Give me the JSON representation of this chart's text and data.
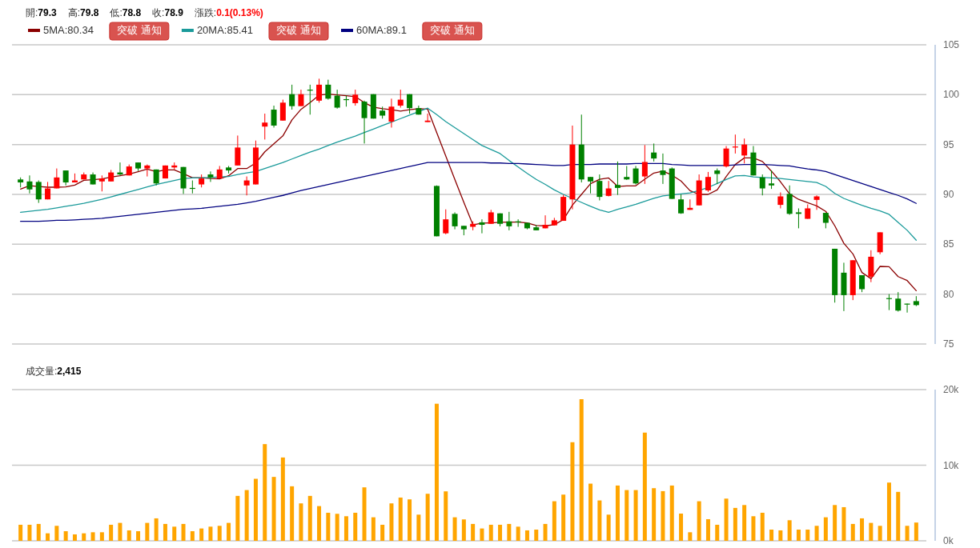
{
  "chart_data": [
    {
      "type": "candlestick",
      "categories": [
        null,
        null,
        null,
        null,
        null,
        null,
        null,
        null,
        null,
        null,
        null,
        null,
        null,
        null,
        null,
        null,
        null,
        null,
        null,
        null,
        null,
        null,
        null,
        null,
        null,
        null,
        null,
        null,
        null,
        null,
        null,
        null,
        null,
        null,
        null,
        null,
        null,
        null,
        null,
        null,
        null,
        null,
        null,
        null,
        null,
        null,
        null,
        null,
        null,
        null,
        null,
        null,
        null,
        null,
        null,
        null,
        null,
        null,
        null,
        null,
        null,
        null,
        null,
        null,
        null,
        null,
        null,
        null,
        null,
        null,
        null,
        null,
        null,
        null,
        null,
        null,
        null,
        null,
        null,
        null,
        null,
        null,
        null,
        null,
        null,
        null,
        null,
        null,
        null,
        null,
        null,
        null,
        null,
        null,
        null,
        null,
        null,
        null,
        null,
        null
      ],
      "ohlc": [
        [
          91.5,
          91.7,
          90.7,
          91.2
        ],
        [
          91.3,
          91.9,
          90.1,
          90.5
        ],
        [
          91.25,
          91.4,
          89.15,
          89.5
        ],
        [
          89.5,
          91.25,
          89.5,
          90.6
        ],
        [
          90.6,
          92.6,
          90.6,
          91.7
        ],
        [
          92.4,
          92.4,
          90.9,
          91.2
        ],
        [
          91.2,
          92.1,
          91.2,
          91.4
        ],
        [
          91.5,
          92.2,
          91.5,
          92.0
        ],
        [
          92.0,
          92.2,
          91.0,
          91.0
        ],
        [
          91.3,
          91.9,
          90.3,
          91.6
        ],
        [
          91.3,
          92.45,
          91.3,
          92.2
        ],
        [
          92.2,
          93.2,
          91.9,
          92.0
        ],
        [
          91.9,
          93.0,
          91.9,
          92.8
        ],
        [
          93.2,
          93.2,
          92.35,
          92.6
        ],
        [
          92.6,
          93.0,
          91.8,
          92.9
        ],
        [
          92.5,
          92.5,
          90.9,
          91.1
        ],
        [
          91.6,
          92.9,
          91.6,
          92.9
        ],
        [
          92.7,
          93.2,
          92.5,
          92.9
        ],
        [
          92.75,
          92.75,
          90.05,
          90.6
        ],
        [
          90.65,
          91.4,
          90.1,
          90.6
        ],
        [
          91.0,
          92.0,
          90.7,
          91.6
        ],
        [
          92.0,
          92.3,
          91.25,
          91.7
        ],
        [
          91.6,
          92.85,
          91.6,
          92.5
        ],
        [
          92.7,
          92.85,
          92.1,
          92.4
        ],
        [
          92.9,
          95.9,
          92.9,
          94.7
        ],
        [
          90.9,
          91.8,
          89.9,
          91.4
        ],
        [
          91.0,
          95.4,
          91.0,
          94.7
        ],
        [
          96.8,
          98.1,
          95.5,
          97.2
        ],
        [
          98.5,
          98.9,
          96.7,
          96.9
        ],
        [
          97.4,
          99.5,
          97.4,
          99.2
        ],
        [
          100.05,
          101.0,
          98.5,
          98.85
        ],
        [
          98.85,
          100.5,
          98.85,
          100.05
        ],
        [
          100.5,
          101.0,
          98.0,
          100.45
        ],
        [
          99.4,
          101.6,
          99.2,
          101.0
        ],
        [
          101.0,
          101.5,
          99.5,
          99.6
        ],
        [
          99.9,
          100.5,
          98.6,
          98.7
        ],
        [
          99.55,
          99.9,
          98.8,
          99.5
        ],
        [
          99.15,
          100.5,
          98.9,
          100.0
        ],
        [
          99.3,
          99.4,
          95.1,
          97.65
        ],
        [
          100.05,
          100.05,
          97.6,
          97.6
        ],
        [
          98.4,
          98.8,
          97.6,
          97.9
        ],
        [
          97.3,
          99.6,
          96.7,
          98.8
        ],
        [
          98.9,
          100.5,
          98.7,
          99.5
        ],
        [
          100.05,
          100.05,
          98.1,
          98.65
        ],
        [
          98.65,
          98.9,
          98.0,
          98.0
        ],
        [
          97.25,
          98.1,
          97.25,
          97.4
        ],
        [
          90.85,
          90.9,
          85.8,
          85.8
        ],
        [
          86.1,
          88.5,
          86.0,
          87.5
        ],
        [
          88.05,
          88.2,
          86.5,
          86.8
        ],
        [
          86.85,
          86.85,
          85.9,
          86.5
        ],
        [
          86.75,
          87.3,
          86.4,
          87.05
        ],
        [
          87.2,
          87.5,
          86.1,
          86.95
        ],
        [
          87.05,
          88.45,
          87.05,
          88.2
        ],
        [
          88.1,
          88.1,
          86.8,
          87.05
        ],
        [
          87.3,
          88.25,
          86.4,
          86.8
        ],
        [
          87.3,
          87.5,
          86.75,
          87.2
        ],
        [
          87.15,
          87.15,
          86.5,
          86.6
        ],
        [
          86.7,
          86.95,
          86.4,
          86.4
        ],
        [
          86.6,
          87.9,
          86.6,
          86.95
        ],
        [
          86.9,
          87.65,
          86.9,
          87.4
        ],
        [
          87.35,
          89.95,
          87.35,
          89.75
        ],
        [
          89.5,
          96.9,
          88.5,
          95.0
        ],
        [
          95.0,
          98.0,
          91.2,
          91.5
        ],
        [
          91.75,
          91.75,
          90.1,
          91.3
        ],
        [
          91.35,
          92.0,
          89.4,
          89.75
        ],
        [
          89.85,
          91.35,
          89.8,
          90.6
        ],
        [
          90.95,
          93.3,
          89.95,
          90.65
        ],
        [
          91.75,
          92.85,
          91.45,
          91.5
        ],
        [
          92.6,
          92.85,
          91.0,
          91.1
        ],
        [
          91.8,
          94.95,
          91.05,
          93.25
        ],
        [
          94.2,
          95.1,
          93.3,
          93.6
        ],
        [
          92.4,
          94.1,
          91.05,
          91.95
        ],
        [
          92.6,
          92.7,
          89.55,
          89.55
        ],
        [
          89.5,
          90.0,
          88.05,
          88.1
        ],
        [
          88.45,
          89.5,
          88.45,
          88.65
        ],
        [
          88.9,
          92.0,
          88.9,
          91.4
        ],
        [
          90.4,
          92.25,
          90.25,
          91.75
        ],
        [
          92.4,
          92.6,
          91.05,
          92.05
        ],
        [
          92.8,
          94.85,
          92.7,
          94.6
        ],
        [
          94.7,
          96.0,
          94.1,
          94.8
        ],
        [
          93.9,
          95.6,
          93.1,
          95.0
        ],
        [
          94.2,
          94.85,
          91.9,
          91.9
        ],
        [
          91.7,
          92.0,
          89.9,
          90.6
        ],
        [
          91.1,
          92.4,
          90.55,
          90.9
        ],
        [
          88.95,
          90.2,
          88.6,
          89.8
        ],
        [
          90.05,
          90.9,
          87.95,
          88.05
        ],
        [
          88.2,
          88.6,
          86.6,
          88.05
        ],
        [
          87.55,
          89.0,
          87.55,
          88.6
        ],
        [
          89.45,
          89.9,
          88.45,
          89.8
        ],
        [
          88.15,
          88.15,
          86.6,
          87.15
        ],
        [
          84.55,
          84.55,
          79.15,
          79.9
        ],
        [
          82.15,
          83.15,
          78.3,
          79.9
        ],
        [
          79.9,
          83.4,
          79.4,
          83.4
        ],
        [
          81.9,
          81.9,
          80.2,
          80.5
        ],
        [
          81.75,
          84.4,
          81.2,
          83.75
        ],
        [
          84.2,
          86.2,
          84.0,
          86.2
        ],
        [
          79.6,
          80.0,
          78.4,
          79.55
        ],
        [
          79.55,
          80.2,
          78.25,
          78.35
        ],
        [
          79.05,
          79.05,
          78.15,
          78.95
        ],
        [
          79.3,
          79.8,
          78.8,
          78.9
        ]
      ],
      "series": [
        {
          "name": "5MA:80.34",
          "type": "line",
          "color": "#8b0000",
          "values": [
            90.53,
            90.88,
            90.8,
            90.72,
            90.72,
            90.75,
            90.93,
            91.41,
            91.47,
            91.55,
            91.73,
            91.87,
            92.03,
            92.27,
            92.53,
            92.27,
            92.45,
            92.45,
            92.08,
            91.68,
            91.68,
            91.6,
            91.55,
            91.87,
            92.59,
            92.59,
            93.15,
            94.27,
            95.07,
            95.87,
            97.47,
            98.53,
            99.2,
            99.95,
            100.05,
            99.97,
            99.9,
            99.8,
            99.2,
            98.75,
            98.6,
            98.5,
            98.35,
            98.5,
            98.6,
            98.55,
            96.2,
            93.85,
            91.5,
            89.2,
            86.95,
            87.12,
            87.15,
            87.2,
            87.23,
            87.23,
            87.15,
            86.88,
            86.85,
            86.96,
            87.47,
            88.93,
            90.0,
            91.07,
            91.52,
            91.65,
            90.8,
            90.86,
            90.86,
            91.52,
            92.14,
            92.33,
            91.93,
            91.34,
            90.37,
            90.0,
            90.0,
            90.45,
            91.8,
            93.0,
            93.66,
            93.66,
            93.3,
            92.33,
            91.26,
            90.05,
            89.5,
            89.17,
            88.85,
            88.3,
            86.85,
            85.1,
            84.04,
            82.17,
            81.55,
            82.78,
            82.75,
            81.76,
            81.36,
            80.34
          ]
        },
        {
          "name": "20MA:85.41",
          "type": "line",
          "color": "#1a9a9a",
          "values": [
            88.2,
            88.3,
            88.4,
            88.5,
            88.65,
            88.8,
            88.95,
            89.1,
            89.3,
            89.5,
            89.75,
            90.0,
            90.25,
            90.5,
            90.75,
            91.0,
            91.2,
            91.4,
            91.6,
            91.65,
            91.65,
            91.7,
            91.75,
            91.8,
            92.0,
            92.15,
            92.3,
            92.6,
            92.9,
            93.2,
            93.55,
            93.9,
            94.25,
            94.55,
            94.9,
            95.25,
            95.55,
            95.85,
            96.2,
            96.55,
            96.9,
            97.25,
            97.6,
            97.95,
            98.3,
            98.65,
            98.0,
            97.3,
            96.7,
            96.1,
            95.5,
            94.9,
            94.5,
            94.1,
            93.4,
            92.75,
            92.1,
            91.5,
            91.0,
            90.45,
            90.0,
            89.6,
            89.2,
            88.8,
            88.45,
            88.2,
            88.5,
            88.75,
            89.0,
            89.3,
            89.6,
            89.85,
            89.95,
            90.05,
            90.15,
            90.4,
            90.7,
            91.1,
            91.5,
            91.85,
            91.9,
            91.75,
            91.7,
            91.65,
            91.6,
            91.5,
            91.4,
            91.3,
            91.2,
            90.8,
            90.1,
            89.6,
            89.25,
            88.9,
            88.6,
            88.35,
            88.0,
            87.2,
            86.4,
            85.41
          ]
        },
        {
          "name": "60MA:89.1",
          "type": "line",
          "color": "#000080",
          "values": [
            87.3,
            87.3,
            87.3,
            87.35,
            87.4,
            87.4,
            87.45,
            87.5,
            87.55,
            87.6,
            87.7,
            87.8,
            87.9,
            88.0,
            88.1,
            88.2,
            88.3,
            88.4,
            88.5,
            88.55,
            88.6,
            88.7,
            88.8,
            88.9,
            89.0,
            89.15,
            89.3,
            89.5,
            89.7,
            89.9,
            90.15,
            90.4,
            90.6,
            90.8,
            91.0,
            91.2,
            91.4,
            91.6,
            91.8,
            92.0,
            92.2,
            92.4,
            92.6,
            92.8,
            93.0,
            93.2,
            93.2,
            93.2,
            93.2,
            93.2,
            93.2,
            93.2,
            93.15,
            93.15,
            93.1,
            93.1,
            93.05,
            93.0,
            92.95,
            92.9,
            92.9,
            93.0,
            93.0,
            93.0,
            93.05,
            93.05,
            93.05,
            93.05,
            93.1,
            93.1,
            93.1,
            93.1,
            93.0,
            92.95,
            92.9,
            92.9,
            92.9,
            92.9,
            92.9,
            92.95,
            93.0,
            93.0,
            93.0,
            92.95,
            92.9,
            92.85,
            92.7,
            92.55,
            92.45,
            92.3,
            92.0,
            91.7,
            91.4,
            91.1,
            90.8,
            90.5,
            90.2,
            89.9,
            89.55,
            89.1
          ]
        }
      ],
      "ylim": [
        75,
        105
      ],
      "yticks": [
        75,
        80,
        85,
        90,
        95,
        100,
        105
      ],
      "grid": "y",
      "legend": "top left",
      "annotations": [
        "開:79.3",
        "高:79.8",
        "低:78.8",
        "收:78.9",
        "漲跌:0.1(0.13%)",
        "突破 通知",
        "突破 通知",
        "突破 通知"
      ]
    },
    {
      "type": "bar",
      "title": "成交量:2,415",
      "categories": [
        null,
        null,
        null,
        null,
        null,
        null,
        null,
        null,
        null,
        null,
        null,
        null,
        null,
        null,
        null,
        null,
        null,
        null,
        null,
        null,
        null,
        null,
        null,
        null,
        null,
        null,
        null,
        null,
        null,
        null,
        null,
        null,
        null,
        null,
        null,
        null,
        null,
        null,
        null,
        null,
        null,
        null,
        null,
        null,
        null,
        null,
        null,
        null,
        null,
        null,
        null,
        null,
        null,
        null,
        null,
        null,
        null,
        null,
        null,
        null,
        null,
        null,
        null,
        null,
        null,
        null,
        null,
        null,
        null,
        null,
        null,
        null,
        null,
        null,
        null,
        null,
        null,
        null,
        null,
        null,
        null,
        null,
        null,
        null,
        null,
        null,
        null,
        null,
        null,
        null,
        null,
        null,
        null,
        null,
        null,
        null,
        null,
        null,
        null,
        null
      ],
      "values": [
        2120,
        2120,
        2230,
        990,
        1980,
        1270,
        850,
        990,
        1130,
        1130,
        2120,
        2370,
        1380,
        1270,
        2370,
        2970,
        2230,
        1870,
        2230,
        1270,
        1630,
        1870,
        1980,
        2370,
        5940,
        6710,
        8200,
        12790,
        8450,
        11020,
        7210,
        4950,
        5940,
        4590,
        3710,
        3570,
        3250,
        3710,
        7070,
        3110,
        2120,
        4950,
        5720,
        5480,
        3460,
        6220,
        18130,
        6540,
        3110,
        2830,
        2230,
        1630,
        2120,
        2120,
        2230,
        1870,
        1380,
        1480,
        2230,
        5230,
        6110,
        13040,
        18730,
        7560,
        5340,
        3460,
        7310,
        6710,
        6710,
        14310,
        6960,
        6570,
        7310,
        3600,
        1130,
        5230,
        2860,
        2120,
        5580,
        4350,
        4730,
        3250,
        3710,
        1480,
        1380,
        2720,
        1480,
        1480,
        1980,
        3110,
        4730,
        4450,
        2230,
        2970,
        2370,
        1980,
        7700,
        6470,
        1980,
        2415
      ],
      "color": "#ffa500",
      "ylim": [
        0,
        20000
      ],
      "yticks": [
        {
          "value": 0,
          "label": "0k"
        },
        {
          "value": 10000,
          "label": "10k"
        },
        {
          "value": 20000,
          "label": "20k"
        }
      ],
      "grid": "y"
    }
  ]
}
